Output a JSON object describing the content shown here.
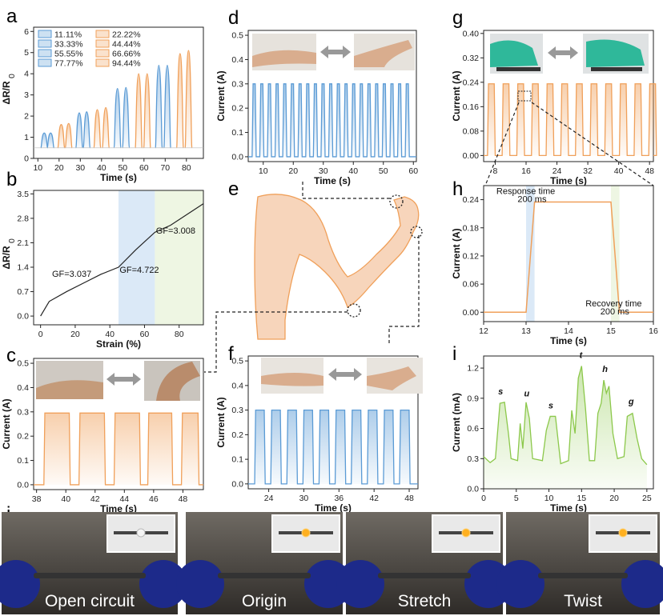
{
  "panels": {
    "a": "a",
    "b": "b",
    "c": "c",
    "d": "d",
    "e": "e",
    "f": "f",
    "g": "g",
    "h": "h",
    "i": "i",
    "j": "j"
  },
  "colors": {
    "blue": "#5b9bd5",
    "orange": "#f0a05a",
    "green": "#8cc84b",
    "black": "#333333"
  },
  "chart_data": [
    {
      "id": "a",
      "type": "line",
      "xlabel": "Time (s)",
      "ylabel": "ΔR/R",
      "xlim": [
        8,
        88
      ],
      "ylim": [
        0,
        6.2
      ],
      "xticks": [
        "10",
        "20",
        "30",
        "40",
        "50",
        "60",
        "70",
        "80"
      ],
      "yticks": [
        "0",
        "1",
        "2",
        "3",
        "4",
        "5",
        "6"
      ],
      "legend": [
        "11.11%",
        "33.33%",
        "55.55%",
        "77.77%",
        "22.22%",
        "44.44%",
        "66.66%",
        "94.44%"
      ],
      "legend_colors": [
        "blue",
        "blue",
        "blue",
        "blue",
        "orange",
        "orange",
        "orange",
        "orange"
      ],
      "peaks": [
        {
          "x": 13.0,
          "h": 1.2,
          "c": "blue"
        },
        {
          "x": 16.0,
          "h": 1.2,
          "c": "blue"
        },
        {
          "x": 21.0,
          "h": 1.6,
          "c": "orange"
        },
        {
          "x": 24.5,
          "h": 1.65,
          "c": "orange"
        },
        {
          "x": 29.5,
          "h": 2.15,
          "c": "blue"
        },
        {
          "x": 33.0,
          "h": 2.2,
          "c": "blue"
        },
        {
          "x": 38.0,
          "h": 2.3,
          "c": "orange"
        },
        {
          "x": 42.0,
          "h": 2.4,
          "c": "orange"
        },
        {
          "x": 47.5,
          "h": 3.3,
          "c": "blue"
        },
        {
          "x": 51.5,
          "h": 3.35,
          "c": "blue"
        },
        {
          "x": 57.5,
          "h": 4.0,
          "c": "orange"
        },
        {
          "x": 61.5,
          "h": 4.0,
          "c": "orange"
        },
        {
          "x": 67.0,
          "h": 4.4,
          "c": "blue"
        },
        {
          "x": 71.0,
          "h": 4.4,
          "c": "blue"
        },
        {
          "x": 77.0,
          "h": 4.95,
          "c": "orange"
        },
        {
          "x": 81.0,
          "h": 5.1,
          "c": "orange"
        }
      ]
    },
    {
      "id": "b",
      "type": "line",
      "xlabel": "Strain (%)",
      "ylabel": "ΔR/R",
      "xlim": [
        -4,
        94
      ],
      "ylim": [
        -0.25,
        3.6
      ],
      "xticks": [
        "0",
        "20",
        "40",
        "60",
        "80"
      ],
      "xtickvals": [
        0,
        20,
        40,
        60,
        80
      ],
      "yticks": [
        "0.0",
        "0.7",
        "1.4",
        "2.1",
        "2.8",
        "3.5"
      ],
      "ytickvals": [
        0,
        0.7,
        1.4,
        2.1,
        2.8,
        3.5
      ],
      "points": [
        [
          0,
          0
        ],
        [
          5,
          0.42
        ],
        [
          15,
          0.7
        ],
        [
          25,
          0.95
        ],
        [
          35,
          1.2
        ],
        [
          45,
          1.4
        ],
        [
          55,
          1.9
        ],
        [
          66,
          2.4
        ],
        [
          75,
          2.6
        ],
        [
          94,
          3.22
        ]
      ],
      "regions": [
        {
          "from": 45,
          "to": 66,
          "c": "#dbe9f7"
        },
        {
          "from": 66,
          "to": 94,
          "c": "#eef6e3"
        }
      ],
      "annotations": [
        {
          "text": "GF=3.037",
          "x": 18,
          "y": 1.12,
          "c": "orange"
        },
        {
          "text": "GF=4.722",
          "x": 57,
          "y": 1.24,
          "c": "blue"
        },
        {
          "text": "GF=3.008",
          "x": 78,
          "y": 2.36,
          "c": "green"
        }
      ]
    },
    {
      "id": "c",
      "type": "area",
      "xlabel": "Time (s)",
      "ylabel": "Current (A)",
      "xlim": [
        37.8,
        49.4
      ],
      "ylim": [
        -0.02,
        0.52
      ],
      "xticks": [
        "38",
        "40",
        "42",
        "44",
        "46",
        "48"
      ],
      "xtickvals": [
        38,
        40,
        42,
        44,
        46,
        48
      ],
      "yticks": [
        "0.0",
        "0.1",
        "0.2",
        "0.3",
        "0.4",
        "0.5"
      ],
      "ytickvals": [
        0,
        0.1,
        0.2,
        0.3,
        0.4,
        0.5
      ],
      "color": "orange",
      "high": 0.295,
      "low": 0.0,
      "pulses": [
        [
          38.5,
          40.3
        ],
        [
          40.9,
          42.7
        ],
        [
          43.3,
          45.1
        ],
        [
          45.6,
          47.3
        ],
        [
          47.9,
          49.1
        ]
      ]
    },
    {
      "id": "d",
      "type": "area",
      "xlabel": "Time (s)",
      "ylabel": "Current (A)",
      "xlim": [
        5,
        61
      ],
      "ylim": [
        -0.02,
        0.52
      ],
      "xticks": [
        "10",
        "20",
        "30",
        "40",
        "50",
        "60"
      ],
      "xtickvals": [
        10,
        20,
        30,
        40,
        50,
        60
      ],
      "yticks": [
        "0.0",
        "0.1",
        "0.2",
        "0.3",
        "0.4",
        "0.5"
      ],
      "ytickvals": [
        0,
        0.1,
        0.2,
        0.3,
        0.4,
        0.5
      ],
      "color": "blue",
      "high": 0.3,
      "low": 0.0,
      "pulse_start": 6.3,
      "pulse_period": 2.55,
      "pulse_width": 1.35,
      "pulse_count": 21
    },
    {
      "id": "f",
      "type": "area",
      "xlabel": "Time (s)",
      "ylabel": "Current (A)",
      "xlim": [
        20.5,
        49.5
      ],
      "ylim": [
        -0.02,
        0.52
      ],
      "xticks": [
        "24",
        "30",
        "36",
        "42",
        "48"
      ],
      "xtickvals": [
        24,
        30,
        36,
        42,
        48
      ],
      "yticks": [
        "0.0",
        "0.1",
        "0.2",
        "0.3",
        "0.4",
        "0.5"
      ],
      "ytickvals": [
        0,
        0.1,
        0.2,
        0.3,
        0.4,
        0.5
      ],
      "color": "blue",
      "high": 0.3,
      "low": 0.0,
      "pulse_start": 21.6,
      "pulse_period": 2.75,
      "pulse_width": 1.8,
      "pulse_count": 10
    },
    {
      "id": "g",
      "type": "area",
      "xlabel": "Time (s)",
      "ylabel": "Current (A)",
      "xlim": [
        5,
        49
      ],
      "ylim": [
        -0.02,
        0.41
      ],
      "xticks": [
        "8",
        "16",
        "24",
        "32",
        "40",
        "48"
      ],
      "xtickvals": [
        8,
        16,
        24,
        32,
        40,
        48
      ],
      "yticks": [
        "0.00",
        "0.08",
        "0.16",
        "0.24",
        "0.32",
        "0.40"
      ],
      "ytickvals": [
        0,
        0.08,
        0.16,
        0.24,
        0.32,
        0.4
      ],
      "color": "orange",
      "high": 0.235,
      "low": 0.0,
      "pulse_start": 6.0,
      "pulse_period": 3.8,
      "pulse_width": 2.0,
      "pulse_count": 12
    },
    {
      "id": "h",
      "type": "line",
      "xlabel": "Time (s)",
      "ylabel": "Current (A)",
      "xlim": [
        12,
        16
      ],
      "ylim": [
        -0.02,
        0.27
      ],
      "xticks": [
        "12",
        "13",
        "14",
        "15",
        "16"
      ],
      "xtickvals": [
        12,
        13,
        14,
        15,
        16
      ],
      "yticks": [
        "0.00",
        "0.06",
        "0.12",
        "0.18",
        "0.24"
      ],
      "ytickvals": [
        0,
        0.06,
        0.12,
        0.18,
        0.24
      ],
      "points": [
        [
          12,
          0
        ],
        [
          13.0,
          0
        ],
        [
          13.2,
          0.235
        ],
        [
          15.0,
          0.235
        ],
        [
          15.2,
          0
        ],
        [
          16,
          0
        ]
      ],
      "regions": [
        {
          "from": 13.0,
          "to": 13.2,
          "c": "#dbe9f7"
        },
        {
          "from": 15.0,
          "to": 15.2,
          "c": "#eef6e3"
        }
      ],
      "annotations": [
        {
          "text": "Response time",
          "x": 12.3,
          "y": 0.252
        },
        {
          "text": "200 ms",
          "x": 12.8,
          "y": 0.235
        },
        {
          "text": "Recovery time",
          "x": 14.4,
          "y": 0.012
        },
        {
          "text": "200 ms",
          "x": 14.75,
          "y": -0.005
        }
      ]
    },
    {
      "id": "i",
      "type": "area",
      "xlabel": "Time (s)",
      "ylabel": "Current (mA)",
      "xlim": [
        0,
        26
      ],
      "ylim": [
        0,
        1.32
      ],
      "xticks": [
        "0",
        "5",
        "10",
        "15",
        "20",
        "25"
      ],
      "xtickvals": [
        0,
        5,
        10,
        15,
        20,
        25
      ],
      "yticks": [
        "0.0",
        "0.3",
        "0.6",
        "0.9",
        "1.2"
      ],
      "ytickvals": [
        0,
        0.3,
        0.6,
        0.9,
        1.2
      ],
      "color": "green",
      "points": [
        [
          0,
          0.32
        ],
        [
          1,
          0.26
        ],
        [
          1.8,
          0.3
        ],
        [
          2.5,
          0.85
        ],
        [
          3.2,
          0.86
        ],
        [
          3.8,
          0.55
        ],
        [
          4.2,
          0.3
        ],
        [
          5.2,
          0.28
        ],
        [
          5.6,
          0.65
        ],
        [
          6.0,
          0.4
        ],
        [
          6.5,
          0.86
        ],
        [
          7.0,
          0.7
        ],
        [
          7.5,
          0.3
        ],
        [
          9.0,
          0.28
        ],
        [
          9.6,
          0.58
        ],
        [
          10.2,
          0.72
        ],
        [
          11.0,
          0.72
        ],
        [
          11.8,
          0.25
        ],
        [
          13.0,
          0.28
        ],
        [
          13.5,
          0.78
        ],
        [
          14.0,
          0.55
        ],
        [
          14.5,
          1.1
        ],
        [
          15.0,
          1.22
        ],
        [
          15.6,
          0.8
        ],
        [
          16.2,
          0.28
        ],
        [
          17.0,
          0.28
        ],
        [
          17.5,
          0.75
        ],
        [
          18.0,
          0.85
        ],
        [
          18.4,
          1.08
        ],
        [
          18.8,
          0.95
        ],
        [
          19.2,
          1.02
        ],
        [
          19.8,
          0.55
        ],
        [
          20.5,
          0.3
        ],
        [
          21.5,
          0.32
        ],
        [
          22.0,
          0.72
        ],
        [
          22.8,
          0.75
        ],
        [
          23.5,
          0.5
        ],
        [
          24.2,
          0.3
        ],
        [
          25.0,
          0.24
        ]
      ],
      "labels": [
        {
          "text": "s",
          "x": 2.6,
          "y": 0.94
        },
        {
          "text": "u",
          "x": 6.6,
          "y": 0.92
        },
        {
          "text": "s",
          "x": 10.3,
          "y": 0.8
        },
        {
          "text": "t",
          "x": 14.9,
          "y": 1.3
        },
        {
          "text": "h",
          "x": 18.6,
          "y": 1.16
        },
        {
          "text": "g",
          "x": 22.6,
          "y": 0.84
        }
      ]
    }
  ],
  "photos_j": [
    "Open circuit",
    "Origin",
    "Stretch",
    "Twist"
  ]
}
